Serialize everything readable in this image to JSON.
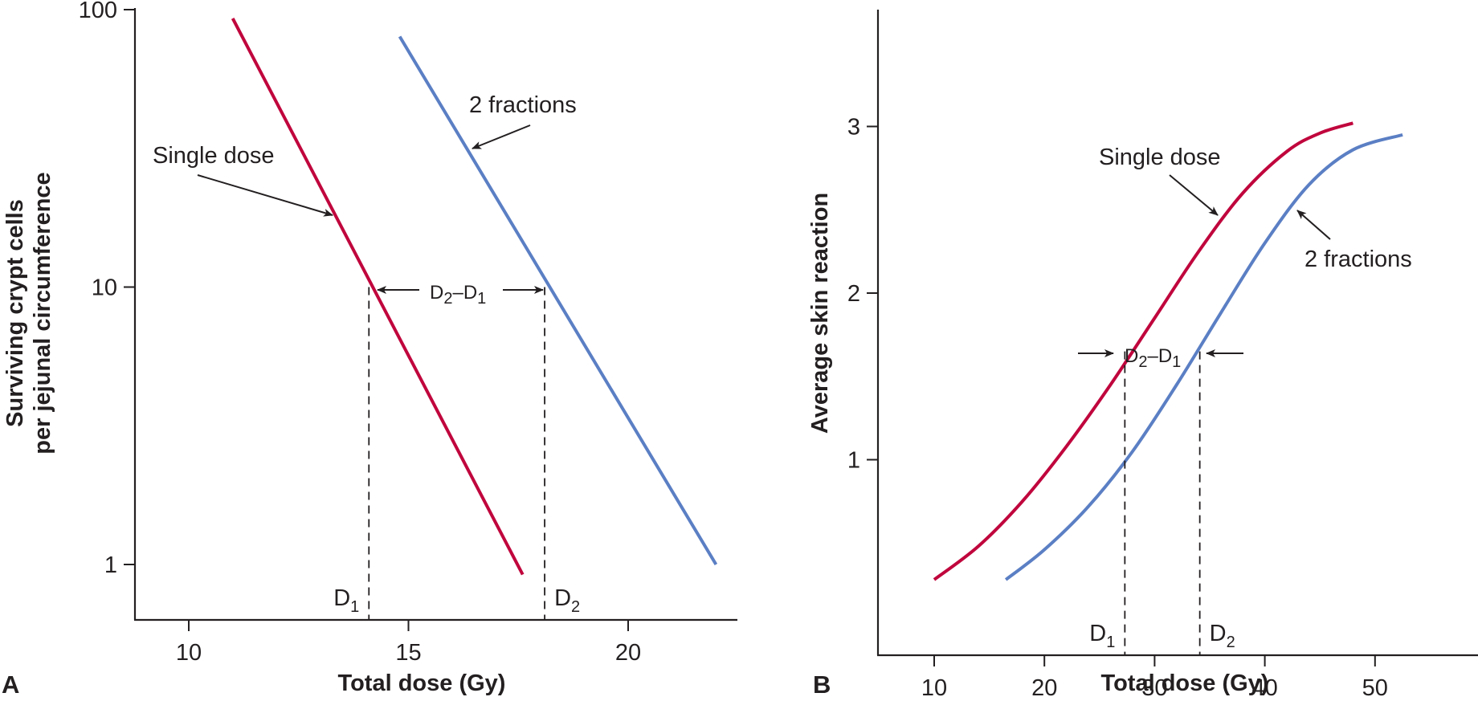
{
  "chart_data": [
    {
      "panel_label": "A",
      "type": "line",
      "xlabel": "Total dose (Gy)",
      "ylabel_lines": [
        "Surviving crypt cells",
        "per jejunal circumference"
      ],
      "yscale": "log",
      "xlim": [
        8.8,
        22.5
      ],
      "ylim": [
        0.65,
        100
      ],
      "xticks": [
        10,
        15,
        20
      ],
      "yticks": [
        1,
        10,
        100
      ],
      "grid": false,
      "series": [
        {
          "name": "Single dose",
          "color": "#c0063d",
          "x": [
            11.0,
            17.6
          ],
          "y": [
            93,
            0.92
          ]
        },
        {
          "name": "2 fractions",
          "color": "#5b7fc4",
          "x": [
            14.8,
            22.0
          ],
          "y": [
            80,
            1.0
          ]
        }
      ],
      "reference_lines": [
        {
          "label": "D",
          "sub": "1",
          "x": 14.1,
          "y": 10
        },
        {
          "label": "D",
          "sub": "2",
          "x": 18.1,
          "y": 10
        }
      ],
      "annotations": {
        "single_dose": "Single dose",
        "two_fractions": "2 fractions",
        "difference": {
          "a": "D",
          "a_sub": "2",
          "dash": "–",
          "b": "D",
          "b_sub": "1"
        }
      }
    },
    {
      "panel_label": "B",
      "type": "line",
      "xlabel": "Total dose (Gy)",
      "ylabel": "Average skin reaction",
      "yscale": "linear",
      "xlim": [
        5,
        58
      ],
      "ylim": [
        0.15,
        3.7
      ],
      "xticks": [
        10,
        20,
        30,
        40,
        50
      ],
      "yticks": [
        1,
        2,
        3
      ],
      "grid": false,
      "series": [
        {
          "name": "Single dose",
          "color": "#c0063d",
          "x": [
            10,
            14,
            18,
            22,
            26,
            30,
            34,
            38,
            42,
            45,
            48
          ],
          "y": [
            0.28,
            0.48,
            0.75,
            1.08,
            1.45,
            1.85,
            2.25,
            2.6,
            2.85,
            2.96,
            3.02
          ]
        },
        {
          "name": "2 fractions",
          "color": "#5b7fc4",
          "x": [
            16.5,
            20,
            24,
            28,
            32,
            36,
            40,
            44,
            48,
            52.5
          ],
          "y": [
            0.28,
            0.46,
            0.72,
            1.05,
            1.45,
            1.88,
            2.3,
            2.65,
            2.86,
            2.95
          ]
        }
      ],
      "reference_lines": [
        {
          "label": "D",
          "sub": "1",
          "x": 27.3,
          "y": 1.65
        },
        {
          "label": "D",
          "sub": "2",
          "x": 34.1,
          "y": 1.65
        }
      ],
      "annotations": {
        "single_dose": "Single dose",
        "two_fractions": "2 fractions",
        "difference": {
          "a": "D",
          "a_sub": "2",
          "dash": "–",
          "b": "D",
          "b_sub": "1"
        }
      }
    }
  ]
}
